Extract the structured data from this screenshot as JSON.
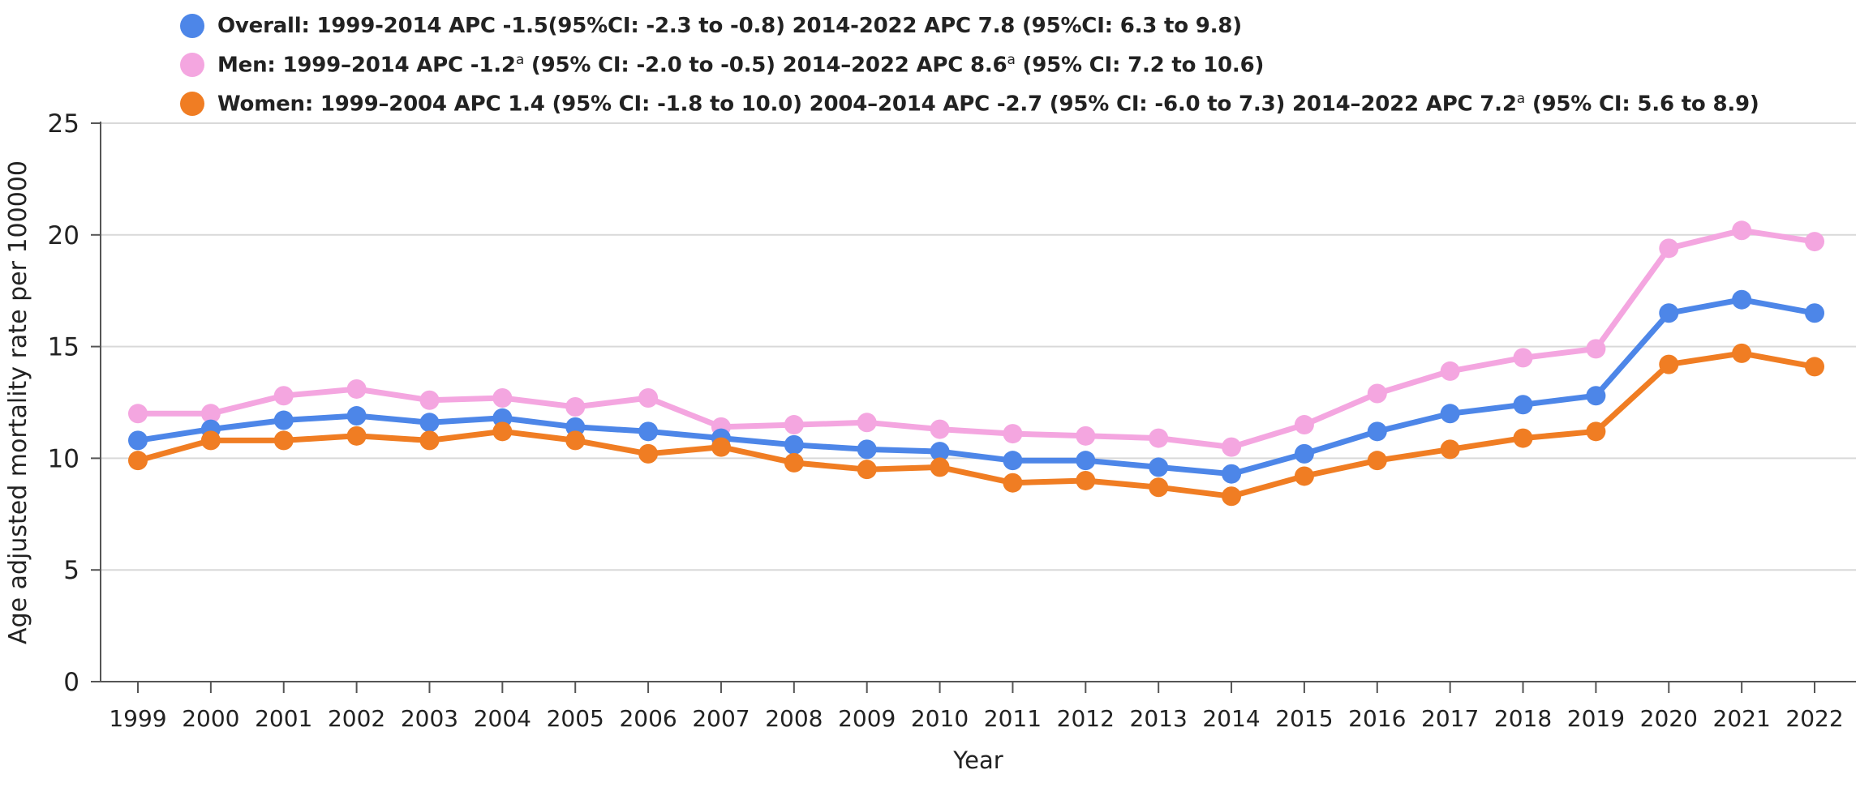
{
  "chart_data": {
    "type": "line",
    "title": "",
    "xlabel": "Year",
    "ylabel": "Age adjusted mortality rate per 100000",
    "ylim": [
      0,
      25
    ],
    "yticks": [
      0,
      5,
      10,
      15,
      20,
      25
    ],
    "grid": true,
    "legend_position": "top-left",
    "categories": [
      "1999",
      "2000",
      "2001",
      "2002",
      "2003",
      "2004",
      "2005",
      "2006",
      "2007",
      "2008",
      "2009",
      "2010",
      "2011",
      "2012",
      "2013",
      "2014",
      "2015",
      "2016",
      "2017",
      "2018",
      "2019",
      "2020",
      "2021",
      "2022"
    ],
    "series": [
      {
        "name": "Men",
        "color": "#f4a6e0",
        "legend_parts": [
          {
            "text": "Men: 1999–2014 APC -1.2"
          },
          {
            "text": "a",
            "sup": true
          },
          {
            "text": " (95% CI: -2.0 to -0.5) 2014–2022 APC 8.6"
          },
          {
            "text": "a",
            "sup": true
          },
          {
            "text": " (95% CI: 7.2 to 10.6)"
          }
        ],
        "values": [
          12.0,
          12.0,
          12.8,
          13.1,
          12.6,
          12.7,
          12.3,
          12.7,
          11.4,
          11.5,
          11.6,
          11.3,
          11.1,
          11.0,
          10.9,
          10.5,
          11.5,
          12.9,
          13.9,
          14.5,
          14.9,
          19.4,
          20.2,
          19.7
        ]
      },
      {
        "name": "Overall",
        "color": "#4d86e8",
        "legend_parts": [
          {
            "text": "Overall: 1999-2014 APC -1.5(95%CI: -2.3 to -0.8) 2014-2022 APC 7.8 (95%CI: 6.3 to 9.8)"
          }
        ],
        "values": [
          10.8,
          11.3,
          11.7,
          11.9,
          11.6,
          11.8,
          11.4,
          11.2,
          10.9,
          10.6,
          10.4,
          10.3,
          9.9,
          9.9,
          9.6,
          9.3,
          10.2,
          11.2,
          12.0,
          12.4,
          12.8,
          16.5,
          17.1,
          16.5
        ]
      },
      {
        "name": "Women",
        "color": "#f07d23",
        "legend_parts": [
          {
            "text": "Women: 1999–2004 APC 1.4 (95% CI: -1.8 to 10.0) 2004–2014 APC -2.7 (95% CI: -6.0 to 7.3) 2014–2022 APC 7.2"
          },
          {
            "text": "a",
            "sup": true
          },
          {
            "text": " (95% CI: 5.6 to 8.9)"
          }
        ],
        "values": [
          9.9,
          10.8,
          10.8,
          11.0,
          10.8,
          11.2,
          10.8,
          10.2,
          10.5,
          9.8,
          9.5,
          9.6,
          8.9,
          9.0,
          8.7,
          8.3,
          9.2,
          9.9,
          10.4,
          10.9,
          11.2,
          14.2,
          14.7,
          14.1
        ]
      }
    ],
    "legend_order": [
      "Overall",
      "Men",
      "Women"
    ]
  }
}
